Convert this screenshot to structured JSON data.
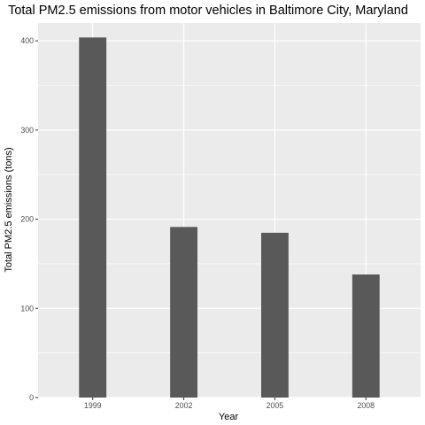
{
  "chart_data": {
    "type": "bar",
    "title": "Total PM2.5 emissions from motor vehicles in Baltimore City, Maryland",
    "xlabel": "Year",
    "ylabel": "Total PM2.5 emissions (tons)",
    "categories": [
      "1999",
      "2002",
      "2005",
      "2008"
    ],
    "values": [
      403.8,
      191.3,
      184.8,
      138.0
    ],
    "ylim": [
      0,
      420
    ],
    "yticks": [
      0,
      100,
      200,
      300,
      400
    ],
    "grid": true,
    "legend": "none",
    "colors": {
      "panel": "#ebebeb",
      "grid": "#ffffff",
      "bar": "#595959",
      "tick": "#333333"
    }
  }
}
